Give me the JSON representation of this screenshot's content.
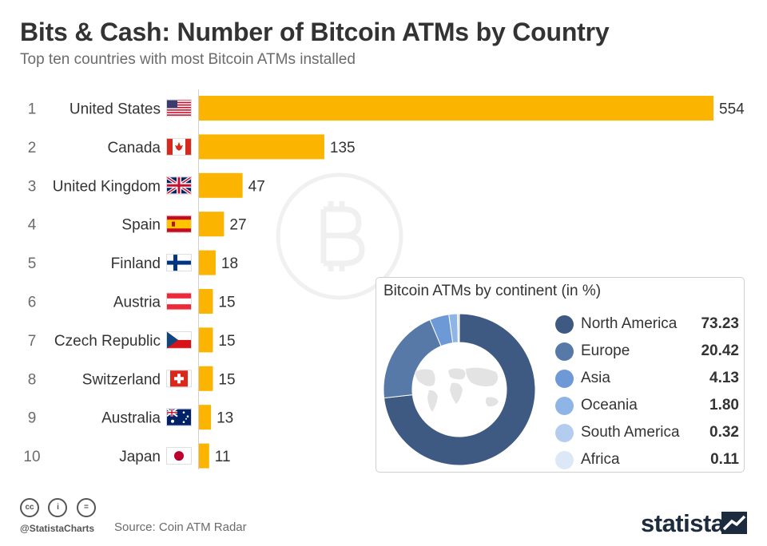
{
  "chart_data": [
    {
      "type": "bar",
      "orientation": "horizontal",
      "title": "Bits & Cash: Number of Bitcoin ATMs by Country",
      "subtitle": "Top ten countries with most Bitcoin ATMs installed",
      "ranks": [
        "1",
        "2",
        "3",
        "4",
        "5",
        "6",
        "7",
        "8",
        "9",
        "10"
      ],
      "categories": [
        "United States",
        "Canada",
        "United Kingdom",
        "Spain",
        "Finland",
        "Austria",
        "Czech Republic",
        "Switzerland",
        "Australia",
        "Japan"
      ],
      "flags": [
        "us-flag-icon",
        "canada-flag-icon",
        "uk-flag-icon",
        "spain-flag-icon",
        "finland-flag-icon",
        "austria-flag-icon",
        "czech-flag-icon",
        "switzerland-flag-icon",
        "australia-flag-icon",
        "japan-flag-icon"
      ],
      "values": [
        554,
        135,
        47,
        27,
        18,
        15,
        15,
        15,
        13,
        11
      ],
      "xlim": [
        0,
        554
      ],
      "bar_color": "#fbb400"
    },
    {
      "type": "pie",
      "variant": "donut",
      "title": "Bitcoin ATMs by continent (in %)",
      "labels": [
        "North America",
        "Europe",
        "Asia",
        "Oceania",
        "South America",
        "Africa"
      ],
      "values": [
        "73.23",
        "20.42",
        "4.13",
        "1.80",
        "0.32",
        "0.11"
      ],
      "colors": [
        "#3f5a82",
        "#5679a8",
        "#6d9ad7",
        "#8fb4e6",
        "#b4cdef",
        "#dde8f7"
      ],
      "center_graphic": "world-map-icon"
    }
  ],
  "footer": {
    "handle": "@StatistaCharts",
    "source": "Source: Coin ATM Radar",
    "brand": "statista",
    "license_icons": [
      "cc",
      "i",
      "="
    ]
  },
  "watermark": "bitcoin-logo-icon"
}
